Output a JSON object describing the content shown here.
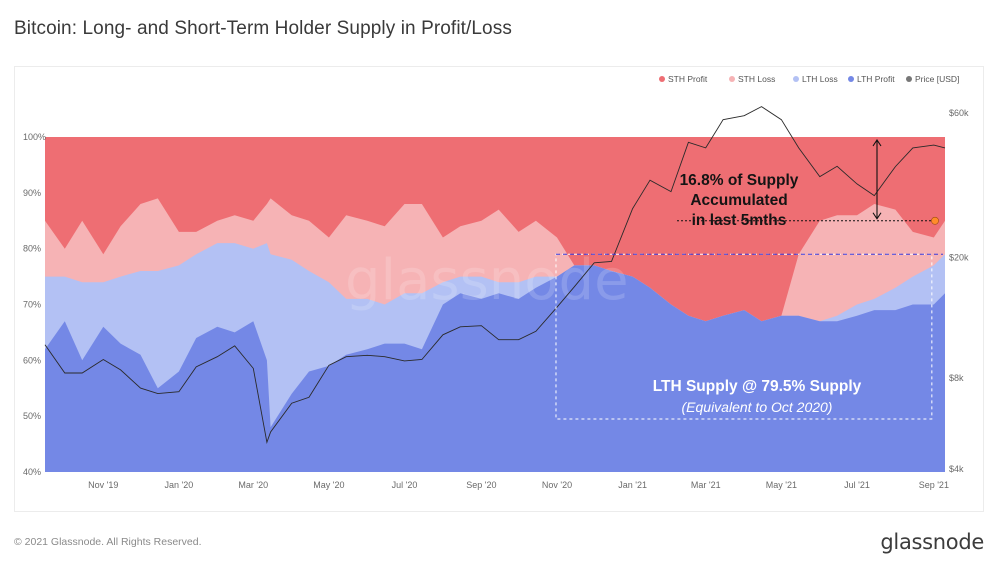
{
  "title": "Bitcoin: Long- and Short-Term Holder Supply in Profit/Loss",
  "footer": {
    "copyright": "© 2021 Glassnode. All Rights Reserved.",
    "brand": "glassnode"
  },
  "watermark": "glassnode",
  "colors": {
    "sth_profit": "#ee6e73",
    "sth_loss": "#f6b3b5",
    "lth_loss": "#b3c1f4",
    "lth_profit": "#7488e6",
    "price": "#2a2a2a",
    "annotation_dashed_blue": "#3a3ad9",
    "marker_orange": "#ff8c2a"
  },
  "legend": [
    {
      "label": "STH Profit",
      "color": "#ee6e73"
    },
    {
      "label": "STH Loss",
      "color": "#f6b3b5"
    },
    {
      "label": "LTH Loss",
      "color": "#b3c1f4"
    },
    {
      "label": "LTH Profit",
      "color": "#7488e6"
    },
    {
      "label": "Price [USD]",
      "color": "#777777"
    }
  ],
  "annotations": {
    "sth_lines": [
      "16.8% of Supply",
      "Accumulated",
      "in last 5mths"
    ],
    "lth_line1": "LTH Supply @ 79.5% Supply",
    "lth_line2": "(Equivalent to Oct 2020)"
  },
  "chart_data": {
    "type": "area",
    "x_tick_labels": [
      "Nov '19",
      "Jan '20",
      "Mar '20",
      "May '20",
      "Jul '20",
      "Sep '20",
      "Nov '20",
      "Jan '21",
      "Mar '21",
      "May '21",
      "Jul '21",
      "Sep '21"
    ],
    "y_left_ticks": [
      "40%",
      "50%",
      "60%",
      "70%",
      "80%",
      "90%",
      "100%"
    ],
    "y_left_range": [
      40,
      100
    ],
    "y_right_ticks": [
      "$4k",
      "$8k",
      "$20k",
      "$60k"
    ],
    "y_right_scale": "log",
    "y_right_range": [
      4000,
      60000
    ],
    "x_range": [
      "2019-09-15",
      "2021-09-10"
    ],
    "dates": [
      "2019-09-15",
      "2019-10-01",
      "2019-10-15",
      "2019-11-01",
      "2019-11-15",
      "2019-12-01",
      "2019-12-15",
      "2020-01-01",
      "2020-01-15",
      "2020-02-01",
      "2020-02-15",
      "2020-03-01",
      "2020-03-12",
      "2020-03-15",
      "2020-04-01",
      "2020-04-15",
      "2020-05-01",
      "2020-05-15",
      "2020-06-01",
      "2020-06-15",
      "2020-07-01",
      "2020-07-15",
      "2020-08-01",
      "2020-08-15",
      "2020-09-01",
      "2020-09-15",
      "2020-10-01",
      "2020-10-15",
      "2020-11-01",
      "2020-11-15",
      "2020-12-01",
      "2020-12-15",
      "2021-01-01",
      "2021-01-15",
      "2021-02-01",
      "2021-02-15",
      "2021-03-01",
      "2021-03-15",
      "2021-04-01",
      "2021-04-15",
      "2021-05-01",
      "2021-05-15",
      "2021-06-01",
      "2021-06-15",
      "2021-07-01",
      "2021-07-15",
      "2021-08-01",
      "2021-08-15",
      "2021-09-01",
      "2021-09-10"
    ],
    "series": [
      {
        "name": "LTH Profit",
        "values": [
          62,
          67,
          60,
          66,
          63,
          61,
          55,
          58,
          64,
          66,
          65,
          67,
          60,
          48,
          54,
          58,
          59,
          61,
          62,
          63,
          63,
          62,
          70,
          72,
          71,
          72,
          71,
          73,
          75,
          77,
          77,
          76,
          75,
          73,
          70,
          68,
          67,
          68,
          69,
          67,
          68,
          68,
          67,
          67,
          68,
          69,
          69,
          70,
          70,
          72
        ]
      },
      {
        "name": "LTH Loss",
        "values": [
          13,
          8,
          14,
          8,
          12,
          15,
          21,
          19,
          15,
          15,
          16,
          13,
          21,
          31,
          24,
          18,
          15,
          10,
          9,
          7,
          9,
          10,
          4,
          3,
          4,
          2,
          3,
          2,
          0,
          0,
          0,
          0,
          0,
          0,
          0,
          0,
          0,
          0,
          0,
          0,
          0,
          0,
          0,
          1,
          2,
          2,
          4,
          5,
          7,
          7
        ]
      },
      {
        "name": "STH Loss",
        "values": [
          10,
          5,
          11,
          5,
          9,
          12,
          13,
          6,
          4,
          4,
          5,
          5,
          7,
          10,
          8,
          9,
          8,
          15,
          14,
          14,
          16,
          16,
          8,
          9,
          10,
          13,
          9,
          10,
          7,
          0,
          0,
          0,
          0,
          0,
          0,
          0,
          0,
          0,
          0,
          0,
          0,
          11,
          18,
          18,
          16,
          17,
          14,
          8,
          5,
          6
        ]
      },
      {
        "name": "STH Profit",
        "values": [
          15,
          20,
          15,
          21,
          16,
          12,
          11,
          17,
          17,
          15,
          14,
          15,
          12,
          11,
          14,
          15,
          18,
          14,
          15,
          16,
          12,
          12,
          18,
          16,
          15,
          13,
          17,
          15,
          18,
          23,
          23,
          24,
          25,
          27,
          30,
          32,
          33,
          32,
          31,
          33,
          32,
          21,
          15,
          14,
          14,
          12,
          13,
          17,
          18,
          15
        ]
      },
      {
        "name": "Price [USD]",
        "values": [
          10300,
          8300,
          8300,
          9200,
          8500,
          7400,
          7100,
          7200,
          8700,
          9400,
          10200,
          8600,
          4900,
          5300,
          6600,
          6900,
          8800,
          9400,
          9500,
          9400,
          9100,
          9200,
          11100,
          11800,
          11900,
          10700,
          10700,
          11400,
          13700,
          16000,
          19200,
          19400,
          29000,
          36000,
          33000,
          48000,
          46000,
          57000,
          58800,
          63000,
          57000,
          46000,
          37000,
          40000,
          35000,
          32000,
          39900,
          46000,
          47000,
          46000
        ]
      }
    ],
    "grid": false,
    "legend_position": "top-right"
  }
}
